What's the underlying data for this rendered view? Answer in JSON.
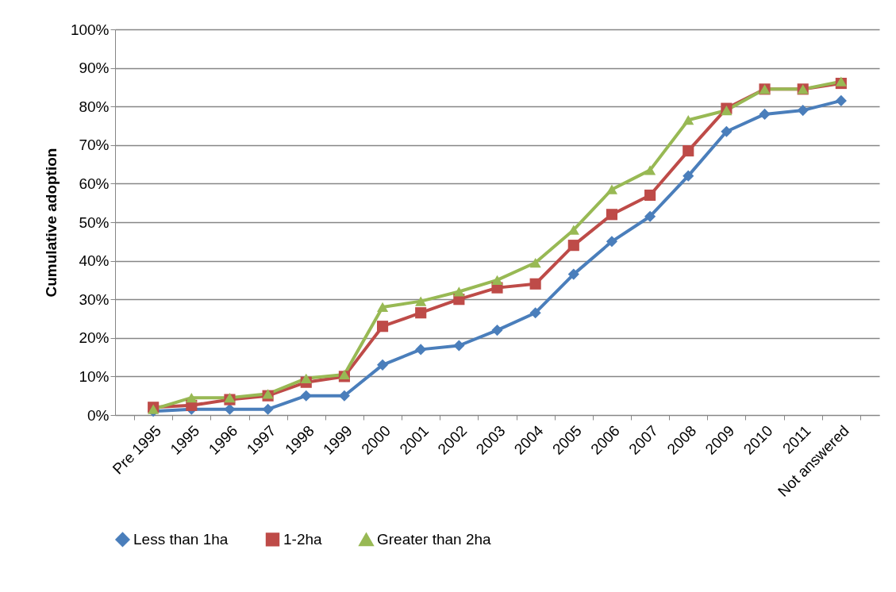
{
  "chart_data": {
    "type": "line",
    "ylabel": "Cumulative adoption",
    "categories": [
      "Pre 1995",
      "1995",
      "1996",
      "1997",
      "1998",
      "1999",
      "2000",
      "2001",
      "2002",
      "2003",
      "2004",
      "2005",
      "2006",
      "2007",
      "2008",
      "2009",
      "2010",
      "2011",
      "Not answered"
    ],
    "series": [
      {
        "name": "Less than 1ha",
        "color": "#4a7ebb",
        "marker": "diamond",
        "values": [
          1,
          1.5,
          1.5,
          1.5,
          5,
          5,
          13,
          17,
          18,
          22,
          26.5,
          36.5,
          45,
          51.5,
          62,
          73.5,
          78,
          79,
          81.5
        ]
      },
      {
        "name": "1-2ha",
        "color": "#be4b48",
        "marker": "square",
        "values": [
          2,
          2.5,
          4,
          5,
          8.5,
          10,
          23,
          26.5,
          30,
          33,
          34,
          44,
          52,
          57,
          68.5,
          79.5,
          84.5,
          84.5,
          86
        ]
      },
      {
        "name": "Greater than 2ha",
        "color": "#98b954",
        "marker": "triangle",
        "values": [
          1.5,
          4.5,
          4.5,
          5.5,
          9.5,
          10.5,
          28,
          29.5,
          32,
          35,
          39.5,
          48,
          58.5,
          63.5,
          76.5,
          79,
          84.5,
          84.5,
          86.5
        ]
      }
    ],
    "ylim": [
      0,
      100
    ],
    "yticks": [
      {
        "value": 0,
        "label": "0%"
      },
      {
        "value": 10,
        "label": "10%"
      },
      {
        "value": 20,
        "label": "20%"
      },
      {
        "value": 30,
        "label": "30%"
      },
      {
        "value": 40,
        "label": "40%"
      },
      {
        "value": 50,
        "label": "50%"
      },
      {
        "value": 60,
        "label": "60%"
      },
      {
        "value": 70,
        "label": "70%"
      },
      {
        "value": 80,
        "label": "80%"
      },
      {
        "value": 90,
        "label": "90%"
      },
      {
        "value": 100,
        "label": "100%"
      }
    ],
    "grid": "y",
    "legend": "bottom",
    "line_style": "solid"
  }
}
